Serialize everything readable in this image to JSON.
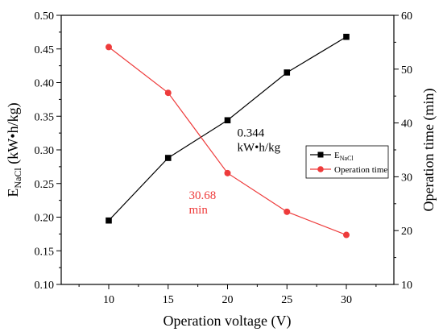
{
  "chart_data": {
    "type": "line",
    "x": [
      10,
      15,
      20,
      25,
      30
    ],
    "xlabel": "Operation voltage (V)",
    "ylabel_left_main": "E",
    "ylabel_left_sub": "NaCl",
    "ylabel_left_unit": " (kW•h/kg)",
    "ylabel_right": "Operation time (min)",
    "xlim": [
      6,
      34
    ],
    "ylim_left": [
      0.1,
      0.5
    ],
    "ylim_right": [
      10,
      60
    ],
    "xticks": [
      "10",
      "15",
      "20",
      "25",
      "30"
    ],
    "yticks_left": [
      "0.10",
      "0.15",
      "0.20",
      "0.25",
      "0.30",
      "0.35",
      "0.40",
      "0.45",
      "0.50"
    ],
    "yticks_right": [
      "10",
      "20",
      "30",
      "40",
      "50",
      "60"
    ],
    "series": [
      {
        "name_main": "E",
        "name_sub": "NaCl",
        "axis": "left",
        "marker": "square",
        "color": "#000000",
        "values": [
          0.195,
          0.288,
          0.344,
          0.415,
          0.468
        ]
      },
      {
        "name": "Operation time",
        "axis": "right",
        "marker": "circle",
        "color": "#ee3b3b",
        "values": [
          54.1,
          45.6,
          30.68,
          23.5,
          19.2
        ]
      }
    ],
    "annotations": [
      {
        "line1": "0.344",
        "line2": "kW•h/kg",
        "color": "#000000",
        "x": 20,
        "y": 0.344,
        "axis": "left"
      },
      {
        "line1": "30.68",
        "line2": "min",
        "color": "#ee3b3b",
        "x": 20,
        "y": 30.68,
        "axis": "right"
      }
    ],
    "legend_position": "middle-right",
    "grid": false
  }
}
